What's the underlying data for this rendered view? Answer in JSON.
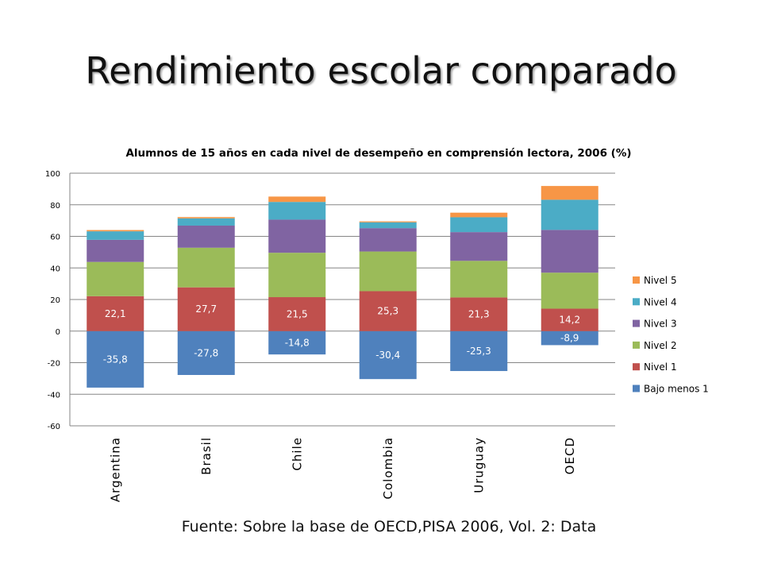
{
  "slide": {
    "title": "Rendimiento escolar comparado",
    "source": "Fuente: Sobre la base de OECD,PISA 2006, Vol. 2: Data"
  },
  "chart_data": {
    "type": "bar",
    "stacked": true,
    "title": "Alumnos  de 15 años en cada nivel de desempeño en comprensión lectora, 2006 (%)",
    "xlabel": "",
    "ylabel": "",
    "categories": [
      "Argentina",
      "Brasil",
      "Chile",
      "Colombia",
      "Uruguay",
      "OECD"
    ],
    "ylim": [
      -60,
      100
    ],
    "yticks": [
      -60,
      -40,
      -20,
      0,
      20,
      40,
      60,
      80,
      100
    ],
    "grid": true,
    "legend": "right",
    "series": [
      {
        "name": "Bajo menos 1",
        "color": "#4F81BD",
        "values": [
          -35.8,
          -27.8,
          -14.8,
          -30.4,
          -25.3,
          -8.9
        ],
        "labels": [
          "-35,8",
          "-27,8",
          "-14,8",
          "-30,4",
          "-25,3",
          "-8,9"
        ]
      },
      {
        "name": "Nivel 1",
        "color": "#C0504D",
        "values": [
          22.1,
          27.7,
          21.5,
          25.3,
          21.3,
          14.2
        ],
        "labels": [
          "22,1",
          "27,7",
          "21,5",
          "25,3",
          "21,3",
          "14,2"
        ]
      },
      {
        "name": "Nivel 2",
        "color": "#9BBB59",
        "values": [
          21.7,
          25.1,
          28.1,
          25.1,
          23.2,
          22.8
        ]
      },
      {
        "name": "Nivel 3",
        "color": "#8064A2",
        "values": [
          14.0,
          14.0,
          21.0,
          14.8,
          18.2,
          27.1
        ]
      },
      {
        "name": "Nivel 4",
        "color": "#4BACC6",
        "values": [
          5.4,
          4.6,
          11.2,
          3.7,
          9.4,
          19.1
        ]
      },
      {
        "name": "Nivel 5",
        "color": "#F79646",
        "values": [
          0.8,
          0.8,
          3.4,
          0.6,
          2.9,
          8.7
        ]
      }
    ]
  }
}
